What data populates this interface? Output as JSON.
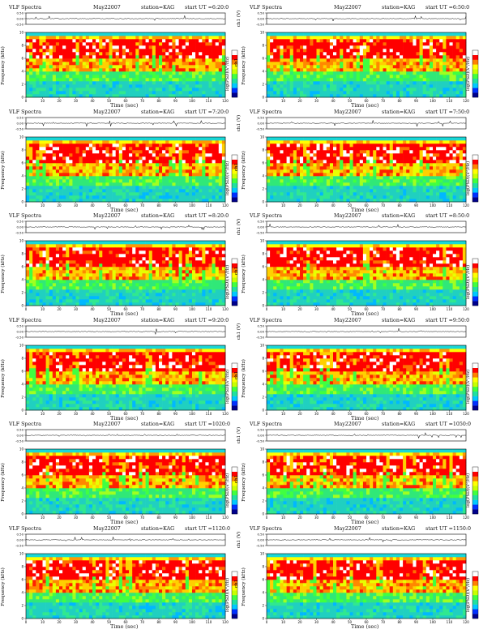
{
  "panel_header": {
    "title": "VLF Spectra",
    "date": "May22007",
    "station": "station=KAG"
  },
  "axis_text": {
    "top_ylabel": "ch1 (V)",
    "spec_ylabel_channel": "ch1",
    "spec_ylabel": "Frequency (kHz)",
    "colorbar_label": "log(PSD)(V²/Hz)",
    "xlabel": "Time (sec)"
  },
  "panels": [
    {
      "start": "start UT =6:20:0"
    },
    {
      "start": "start UT =6:50:0"
    },
    {
      "start": "start UT =7:20:0"
    },
    {
      "start": "start UT =7:50:0"
    },
    {
      "start": "start UT =8:20:0"
    },
    {
      "start": "start UT =8:50:0"
    },
    {
      "start": "start UT =9:20:0"
    },
    {
      "start": "start UT =9:50:0"
    },
    {
      "start": "start UT =1020:0"
    },
    {
      "start": "start UT =1050:0"
    },
    {
      "start": "start UT =1120:0"
    },
    {
      "start": "start UT =1150:0"
    }
  ],
  "chart_data": {
    "type": "heatmap",
    "panel_count": 12,
    "x": {
      "label": "Time (sec)",
      "range": [
        0,
        120
      ],
      "ticks": [
        0,
        10,
        20,
        30,
        40,
        50,
        60,
        70,
        80,
        90,
        100,
        110,
        120
      ]
    },
    "y_frequency": {
      "label": "Frequency (kHz)",
      "range": [
        0,
        10
      ],
      "ticks": [
        0,
        2,
        4,
        6,
        8,
        10
      ]
    },
    "y_waveform": {
      "label": "ch1 (V)",
      "range": [
        -0.5,
        0.5
      ],
      "ticks": [
        -0.5,
        0.0,
        0.5
      ],
      "tick_labels": [
        "-0.50",
        "0.00",
        "0.50"
      ]
    },
    "colorbar": {
      "label": "log(PSD)(V²/Hz)",
      "colors": [
        "#00008c",
        "#0030ff",
        "#00c8ff",
        "#20e0a0",
        "#40ff40",
        "#c8ff00",
        "#ffff00",
        "#ff8000",
        "#ff0000",
        "#ffffff"
      ]
    },
    "spectral_bands": [
      {
        "freq_range": [
          0,
          4.2
        ],
        "dominant": "cyan-green"
      },
      {
        "freq_range": [
          4.2,
          6.2
        ],
        "dominant": "yellow-orange"
      },
      {
        "freq_range": [
          6.2,
          9.0
        ],
        "dominant": "red"
      },
      {
        "freq_range": [
          9.0,
          9.6
        ],
        "dominant": "yellow"
      },
      {
        "freq_range": [
          9.6,
          10.0
        ],
        "dominant": "cyan"
      }
    ]
  }
}
